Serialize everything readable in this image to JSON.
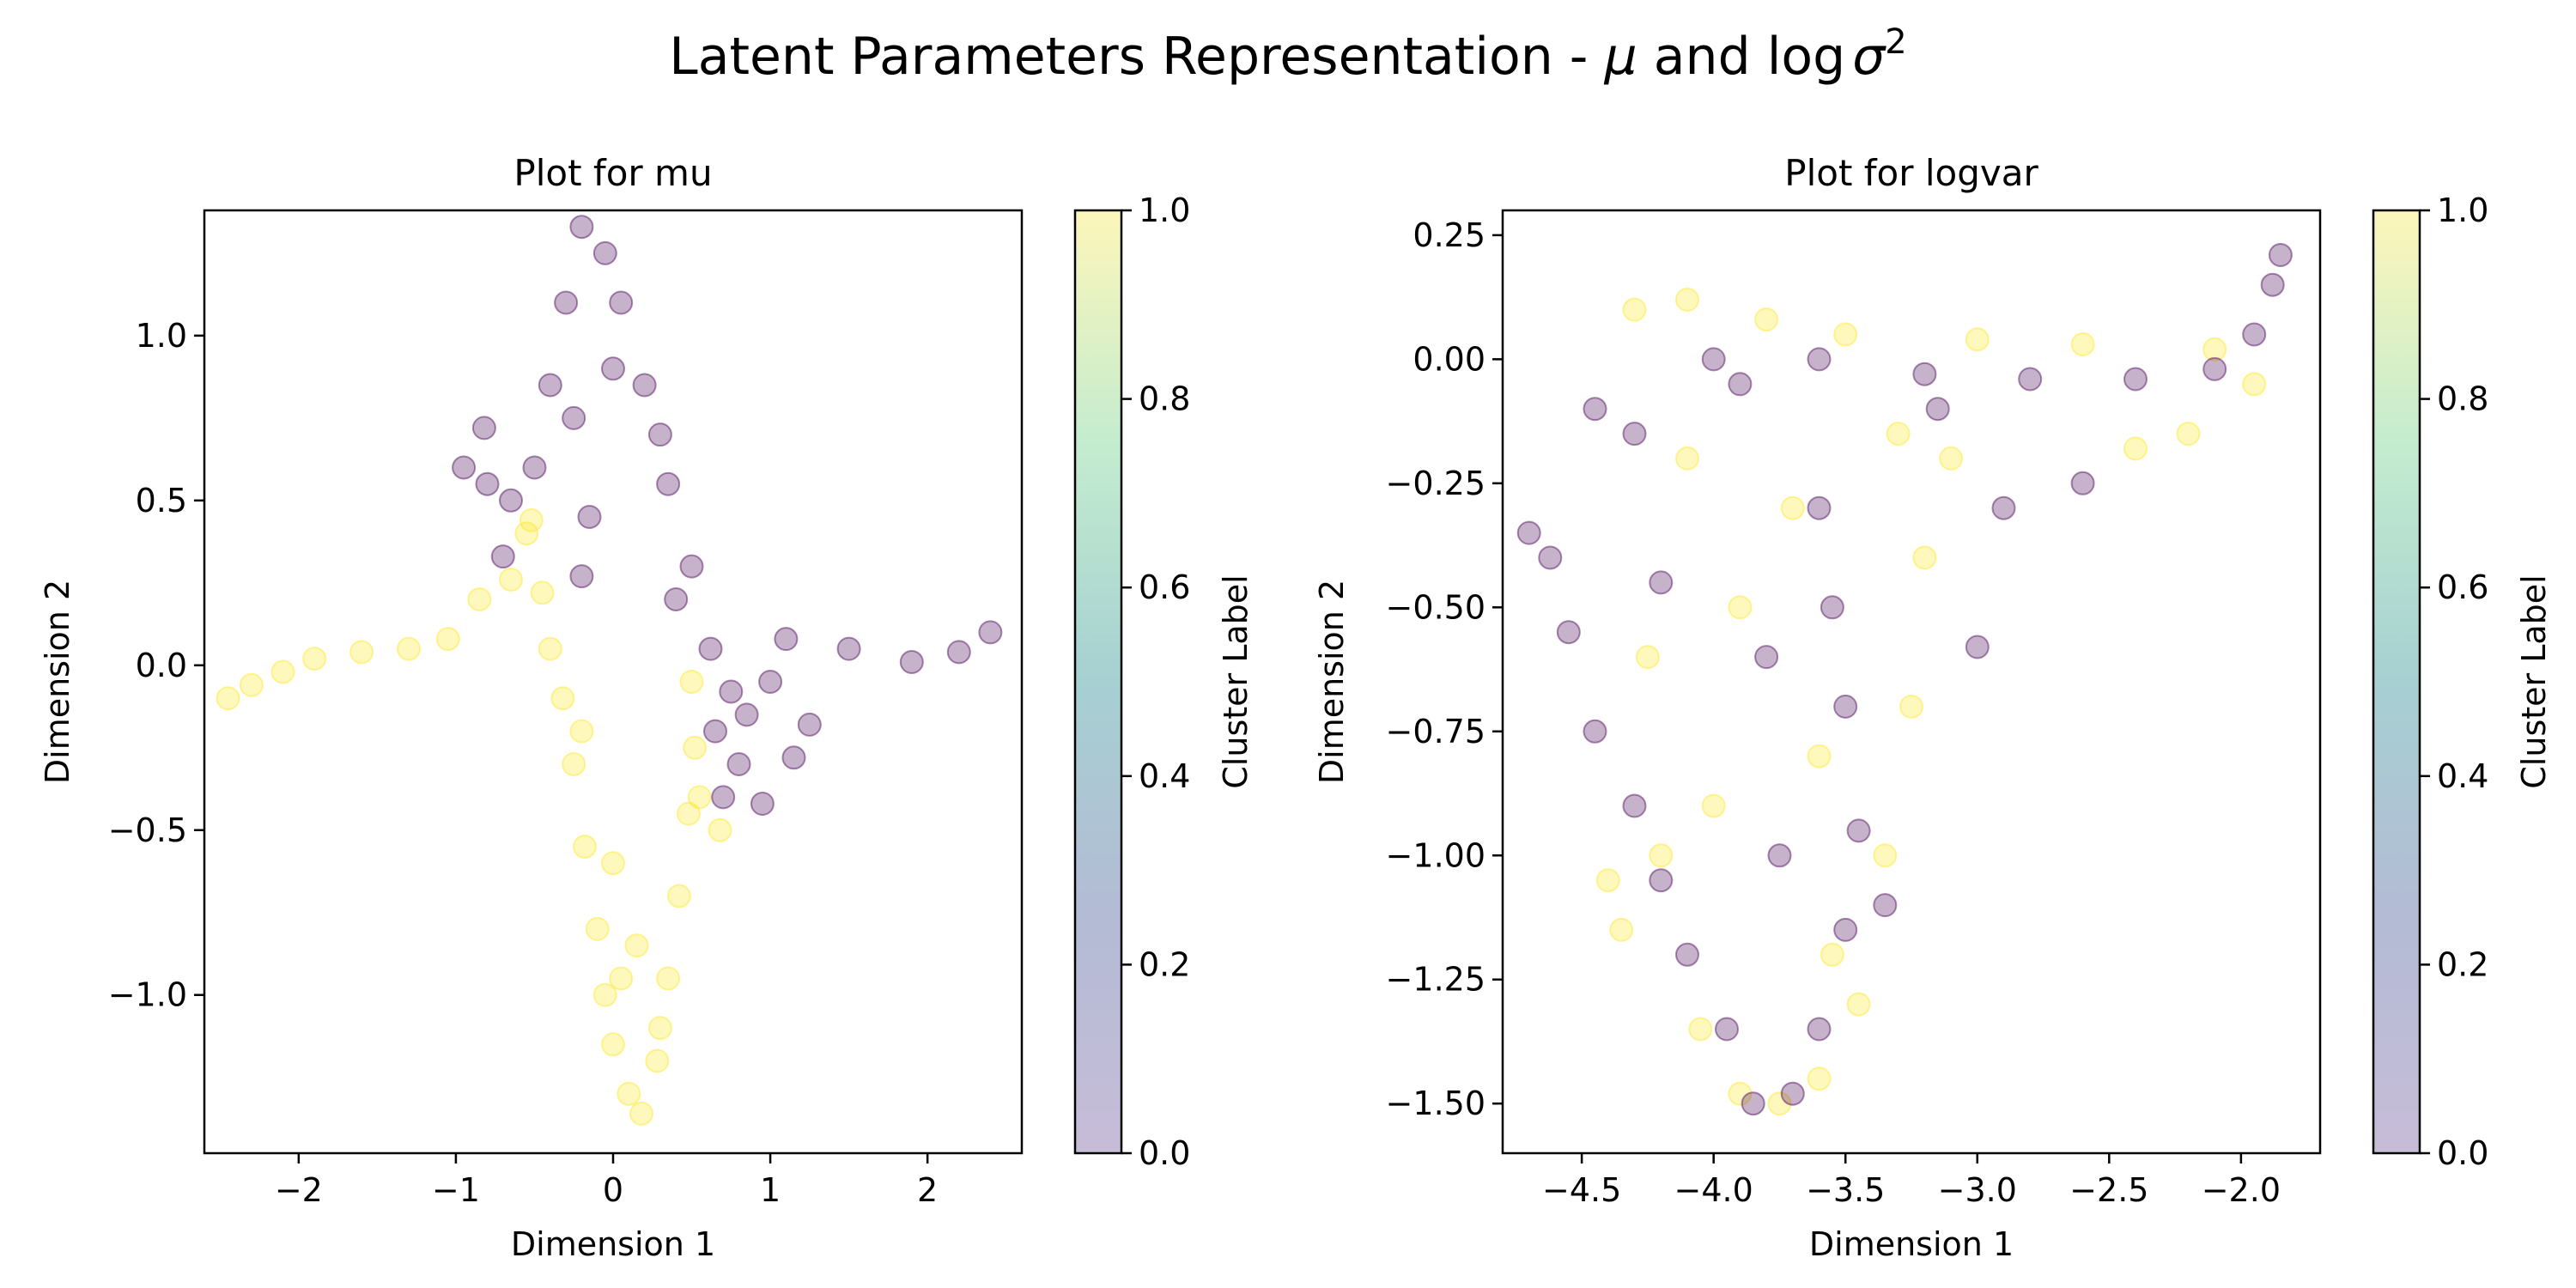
{
  "figure": {
    "title_prefix": "Latent Parameters Representation - ",
    "title_mu": "μ",
    "title_and": " and log",
    "title_sigma": "σ",
    "title_sup": "2"
  },
  "colors": {
    "cluster_0": "#440154",
    "cluster_1": "#fde725"
  },
  "chart_data": [
    {
      "type": "scatter",
      "title": "Plot for mu",
      "xlabel": "Dimension 1",
      "ylabel": "Dimension 2",
      "xlim": [
        -2.6,
        2.6
      ],
      "ylim": [
        -1.48,
        1.38
      ],
      "xticks": [
        -2,
        -1,
        0,
        1,
        2
      ],
      "xtick_labels": [
        "−2",
        "−1",
        "0",
        "1",
        "2"
      ],
      "yticks": [
        -1.0,
        -0.5,
        0.0,
        0.5,
        1.0
      ],
      "ytick_labels": [
        "−1.0",
        "−0.5",
        "0.0",
        "0.5",
        "1.0"
      ],
      "grid": false,
      "marker_alpha": 0.3,
      "colorbar": {
        "label": "Cluster Label",
        "range": [
          0.0,
          1.0
        ],
        "ticks": [
          0.0,
          0.2,
          0.4,
          0.6,
          0.8,
          1.0
        ],
        "tick_labels": [
          "0.0",
          "0.2",
          "0.4",
          "0.6",
          "0.8",
          "1.0"
        ]
      },
      "series": [
        {
          "cluster": 1,
          "points": [
            [
              -2.45,
              -0.1
            ],
            [
              -2.3,
              -0.06
            ],
            [
              -2.1,
              -0.02
            ],
            [
              -1.9,
              0.02
            ],
            [
              -1.6,
              0.04
            ],
            [
              -1.3,
              0.05
            ],
            [
              -1.05,
              0.08
            ],
            [
              -0.85,
              0.2
            ],
            [
              -0.65,
              0.26
            ],
            [
              -0.45,
              0.22
            ],
            [
              -0.4,
              0.05
            ],
            [
              -0.32,
              -0.1
            ],
            [
              -0.25,
              -0.3
            ],
            [
              -0.18,
              -0.55
            ],
            [
              -0.1,
              -0.8
            ],
            [
              -0.05,
              -1.0
            ],
            [
              0.0,
              -1.15
            ],
            [
              0.1,
              -1.3
            ],
            [
              0.18,
              -1.36
            ],
            [
              0.28,
              -1.2
            ],
            [
              0.35,
              -0.95
            ],
            [
              0.42,
              -0.7
            ],
            [
              0.48,
              -0.45
            ],
            [
              0.52,
              -0.25
            ],
            [
              0.5,
              -0.05
            ],
            [
              0.55,
              -0.4
            ],
            [
              0.68,
              -0.5
            ],
            [
              0.15,
              -0.85
            ],
            [
              0.0,
              -0.6
            ],
            [
              -0.2,
              -0.2
            ],
            [
              -0.55,
              0.4
            ],
            [
              -0.52,
              0.44
            ],
            [
              0.3,
              -1.1
            ],
            [
              0.05,
              -0.95
            ]
          ]
        },
        {
          "cluster": 0,
          "points": [
            [
              -0.82,
              0.72
            ],
            [
              -0.8,
              0.55
            ],
            [
              -0.65,
              0.5
            ],
            [
              -0.5,
              0.6
            ],
            [
              -0.4,
              0.85
            ],
            [
              -0.3,
              1.1
            ],
            [
              -0.2,
              1.33
            ],
            [
              -0.05,
              1.25
            ],
            [
              0.05,
              1.1
            ],
            [
              0.2,
              0.85
            ],
            [
              0.35,
              0.55
            ],
            [
              0.5,
              0.3
            ],
            [
              0.62,
              0.05
            ],
            [
              0.75,
              -0.08
            ],
            [
              0.85,
              -0.15
            ],
            [
              1.0,
              -0.05
            ],
            [
              1.1,
              0.08
            ],
            [
              1.5,
              0.05
            ],
            [
              1.9,
              0.01
            ],
            [
              2.2,
              0.04
            ],
            [
              2.4,
              0.1
            ],
            [
              0.7,
              -0.4
            ],
            [
              0.95,
              -0.42
            ],
            [
              1.25,
              -0.18
            ],
            [
              1.15,
              -0.28
            ],
            [
              -0.25,
              0.75
            ],
            [
              0.0,
              0.9
            ],
            [
              0.3,
              0.7
            ],
            [
              -0.15,
              0.45
            ],
            [
              -0.2,
              0.27
            ],
            [
              -0.7,
              0.33
            ],
            [
              0.8,
              -0.3
            ],
            [
              -0.95,
              0.6
            ],
            [
              0.4,
              0.2
            ],
            [
              0.65,
              -0.2
            ]
          ]
        }
      ]
    },
    {
      "type": "scatter",
      "title": "Plot for logvar",
      "xlabel": "Dimension 1",
      "ylabel": "Dimension 2",
      "xlim": [
        -4.8,
        -1.7
      ],
      "ylim": [
        -1.6,
        0.3
      ],
      "xticks": [
        -4.5,
        -4.0,
        -3.5,
        -3.0,
        -2.5,
        -2.0
      ],
      "xtick_labels": [
        "−4.5",
        "−4.0",
        "−3.5",
        "−3.0",
        "−2.5",
        "−2.0"
      ],
      "yticks": [
        -1.5,
        -1.25,
        -1.0,
        -0.75,
        -0.5,
        -0.25,
        0.0,
        0.25
      ],
      "ytick_labels": [
        "−1.50",
        "−1.25",
        "−1.00",
        "−0.75",
        "−0.50",
        "−0.25",
        "0.00",
        "0.25"
      ],
      "grid": false,
      "marker_alpha": 0.3,
      "colorbar": {
        "label": "Cluster Label",
        "range": [
          0.0,
          1.0
        ],
        "ticks": [
          0.0,
          0.2,
          0.4,
          0.6,
          0.8,
          1.0
        ],
        "tick_labels": [
          "0.0",
          "0.2",
          "0.4",
          "0.6",
          "0.8",
          "1.0"
        ]
      },
      "series": [
        {
          "cluster": 1,
          "points": [
            [
              -4.3,
              0.1
            ],
            [
              -4.1,
              0.12
            ],
            [
              -3.8,
              0.08
            ],
            [
              -3.5,
              0.05
            ],
            [
              -3.0,
              0.04
            ],
            [
              -2.6,
              0.03
            ],
            [
              -2.1,
              0.02
            ],
            [
              -1.95,
              -0.05
            ],
            [
              -2.2,
              -0.15
            ],
            [
              -2.4,
              -0.18
            ],
            [
              -4.25,
              -0.6
            ],
            [
              -4.2,
              -1.0
            ],
            [
              -4.05,
              -1.35
            ],
            [
              -3.9,
              -1.48
            ],
            [
              -3.75,
              -1.5
            ],
            [
              -3.6,
              -1.45
            ],
            [
              -3.45,
              -1.3
            ],
            [
              -3.35,
              -1.0
            ],
            [
              -3.25,
              -0.7
            ],
            [
              -3.2,
              -0.4
            ],
            [
              -3.1,
              -0.2
            ],
            [
              -4.4,
              -1.05
            ],
            [
              -4.35,
              -1.15
            ],
            [
              -3.9,
              -0.5
            ],
            [
              -3.6,
              -0.8
            ],
            [
              -3.7,
              -0.3
            ],
            [
              -4.1,
              -0.2
            ],
            [
              -4.0,
              -0.9
            ],
            [
              -3.3,
              -0.15
            ],
            [
              -3.55,
              -1.2
            ]
          ]
        },
        {
          "cluster": 0,
          "points": [
            [
              -4.7,
              -0.35
            ],
            [
              -4.62,
              -0.4
            ],
            [
              -4.55,
              -0.55
            ],
            [
              -4.45,
              -0.75
            ],
            [
              -4.3,
              -0.9
            ],
            [
              -4.2,
              -1.05
            ],
            [
              -4.1,
              -1.2
            ],
            [
              -3.95,
              -1.35
            ],
            [
              -3.85,
              -1.5
            ],
            [
              -3.7,
              -1.48
            ],
            [
              -3.6,
              -1.35
            ],
            [
              -3.5,
              -1.15
            ],
            [
              -3.45,
              -0.95
            ],
            [
              -3.5,
              -0.7
            ],
            [
              -3.55,
              -0.5
            ],
            [
              -3.6,
              -0.3
            ],
            [
              -3.9,
              -0.05
            ],
            [
              -4.0,
              0.0
            ],
            [
              -3.6,
              0.0
            ],
            [
              -3.2,
              -0.03
            ],
            [
              -2.8,
              -0.04
            ],
            [
              -2.4,
              -0.04
            ],
            [
              -2.1,
              -0.02
            ],
            [
              -1.95,
              0.05
            ],
            [
              -1.88,
              0.15
            ],
            [
              -1.85,
              0.21
            ],
            [
              -2.9,
              -0.3
            ],
            [
              -3.0,
              -0.58
            ],
            [
              -2.6,
              -0.25
            ],
            [
              -4.45,
              -0.1
            ],
            [
              -4.3,
              -0.15
            ],
            [
              -3.75,
              -1.0
            ],
            [
              -3.8,
              -0.6
            ],
            [
              -3.35,
              -1.1
            ],
            [
              -4.2,
              -0.45
            ],
            [
              -3.15,
              -0.1
            ]
          ]
        }
      ]
    }
  ]
}
